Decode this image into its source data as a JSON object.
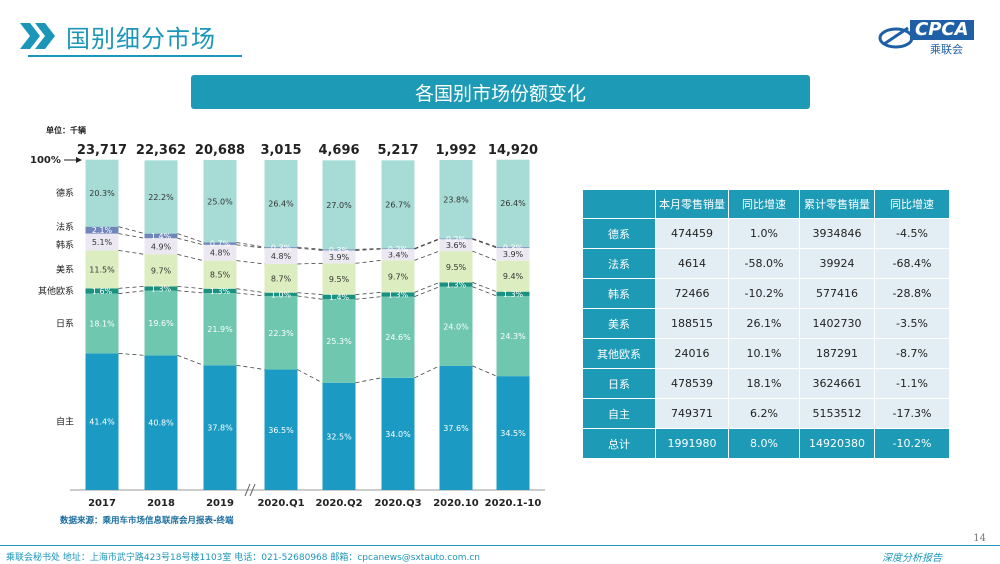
{
  "header": {
    "title": "国别细分市场"
  },
  "logo": {
    "text": "CPCA",
    "subtext": "乘联会"
  },
  "banner": {
    "title": "各国别市场份额变化"
  },
  "chart_data": {
    "type": "bar",
    "stacked": true,
    "unit_label": "单位：千辆",
    "top_label": "100%",
    "categories": [
      "2017",
      "2018",
      "2019",
      "2020.Q1",
      "2020.Q2",
      "2020.Q3",
      "2020.10",
      "2020.1-10"
    ],
    "totals": [
      "23,717",
      "22,362",
      "20,688",
      "3,015",
      "4,696",
      "5,217",
      "1,992",
      "14,920"
    ],
    "series": [
      {
        "name": "自主",
        "color": "#1b9bc3",
        "labels": [
          "41.4%",
          "40.8%",
          "37.8%",
          "36.5%",
          "32.5%",
          "34.0%",
          "37.6%",
          "34.5%"
        ]
      },
      {
        "name": "日系",
        "color": "#6ec7ae",
        "labels": [
          "18.1%",
          "19.6%",
          "21.9%",
          "22.3%",
          "25.3%",
          "24.6%",
          "24.0%",
          "24.3%"
        ]
      },
      {
        "name": "其他欧系",
        "color": "#1a9080",
        "labels": [
          "1.6%",
          "1.3%",
          "1.3%",
          "1.0%",
          "1.4%",
          "1.3%",
          "1.3%",
          "1.3%"
        ]
      },
      {
        "name": "美系",
        "color": "#dceec0",
        "labels": [
          "11.5%",
          "9.7%",
          "8.5%",
          "8.7%",
          "9.5%",
          "9.7%",
          "9.5%",
          "9.4%"
        ]
      },
      {
        "name": "韩系",
        "color": "#ece8f2",
        "labels": [
          "5.1%",
          "4.9%",
          "4.8%",
          "4.8%",
          "3.9%",
          "3.4%",
          "3.6%",
          "3.9%"
        ]
      },
      {
        "name": "法系",
        "color": "#6e86ba",
        "labels": [
          "2.1%",
          "1.4%",
          "0.7%",
          "0.3%",
          "0.3%",
          "0.2%",
          "0.2%",
          "0.3%"
        ]
      },
      {
        "name": "德系",
        "color": "#a7dcd6",
        "labels": [
          "20.3%",
          "22.2%",
          "25.0%",
          "26.4%",
          "27.0%",
          "26.7%",
          "23.8%",
          "26.4%"
        ]
      }
    ],
    "source": "数据来源：乘用车市场信息联席会月报表-终端"
  },
  "table": {
    "headers": [
      "",
      "本月零售销量",
      "同比增速",
      "累计零售销量",
      "同比增速"
    ],
    "rows": [
      [
        "德系",
        "474459",
        "1.0%",
        "3934846",
        "-4.5%"
      ],
      [
        "法系",
        "4614",
        "-58.0%",
        "39924",
        "-68.4%"
      ],
      [
        "韩系",
        "72466",
        "-10.2%",
        "577416",
        "-28.8%"
      ],
      [
        "美系",
        "188515",
        "26.1%",
        "1402730",
        "-3.5%"
      ],
      [
        "其他欧系",
        "24016",
        "10.1%",
        "187291",
        "-8.7%"
      ],
      [
        "日系",
        "478539",
        "18.1%",
        "3624661",
        "-1.1%"
      ],
      [
        "自主",
        "749371",
        "6.2%",
        "5153512",
        "-17.3%"
      ]
    ],
    "total": [
      "总计",
      "1991980",
      "8.0%",
      "14920380",
      "-10.2%"
    ]
  },
  "footer": {
    "left": "乘联会秘书处   地址：上海市武宁路423号18号楼1103室   电话：021-52680968   邮箱：cpcanews@sxtauto.com.cn",
    "right": "深度分析报告",
    "page": "14"
  },
  "colors": {
    "accent": "#1c96b8",
    "banner": "#1c9ab6"
  }
}
